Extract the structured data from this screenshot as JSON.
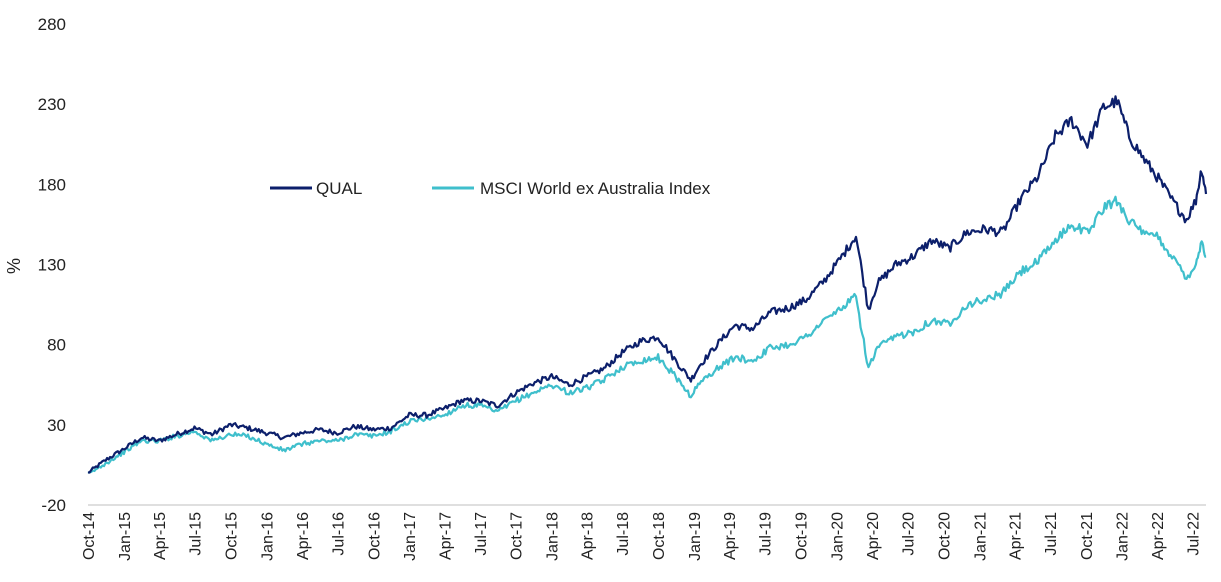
{
  "chart_data": {
    "type": "line",
    "title": "",
    "xlabel": "",
    "ylabel": "%",
    "ylim": [
      -20,
      280
    ],
    "yticks": [
      -20,
      30,
      80,
      130,
      180,
      230,
      280
    ],
    "xlim": [
      "2014-10-01",
      "2022-08-05"
    ],
    "xtick_labels": [
      "Oct-14",
      "Jan-15",
      "Apr-15",
      "Jul-15",
      "Oct-15",
      "Jan-16",
      "Apr-16",
      "Jul-16",
      "Oct-16",
      "Jan-17",
      "Apr-17",
      "Jul-17",
      "Oct-17",
      "Jan-18",
      "Apr-18",
      "Jul-18",
      "Oct-18",
      "Jan-19",
      "Apr-19",
      "Jul-19",
      "Oct-19",
      "Jan-20",
      "Apr-20",
      "Jul-20",
      "Oct-20",
      "Jan-21",
      "Apr-21",
      "Jul-21",
      "Oct-21",
      "Jan-22",
      "Apr-22",
      "Jul-22"
    ],
    "grid": false,
    "legend_position": "upper-left-center",
    "series": [
      {
        "name": "QUAL",
        "color": "#0c1f6b",
        "points": [
          [
            "2014-10-01",
            0
          ],
          [
            "2014-11-15",
            8
          ],
          [
            "2015-01-01",
            15
          ],
          [
            "2015-02-15",
            22
          ],
          [
            "2015-04-01",
            20
          ],
          [
            "2015-05-15",
            24
          ],
          [
            "2015-07-01",
            28
          ],
          [
            "2015-08-15",
            24
          ],
          [
            "2015-10-01",
            30
          ],
          [
            "2015-11-15",
            28
          ],
          [
            "2016-01-01",
            25
          ],
          [
            "2016-02-15",
            22
          ],
          [
            "2016-04-01",
            25
          ],
          [
            "2016-05-15",
            27
          ],
          [
            "2016-07-01",
            25
          ],
          [
            "2016-08-15",
            29
          ],
          [
            "2016-10-01",
            27
          ],
          [
            "2016-11-15",
            28
          ],
          [
            "2017-01-01",
            36
          ],
          [
            "2017-02-15",
            36
          ],
          [
            "2017-04-01",
            40
          ],
          [
            "2017-05-15",
            45
          ],
          [
            "2017-07-01",
            45
          ],
          [
            "2017-08-15",
            42
          ],
          [
            "2017-10-01",
            50
          ],
          [
            "2017-11-15",
            56
          ],
          [
            "2018-01-01",
            60
          ],
          [
            "2018-02-15",
            55
          ],
          [
            "2018-04-01",
            60
          ],
          [
            "2018-05-15",
            65
          ],
          [
            "2018-07-01",
            75
          ],
          [
            "2018-08-15",
            82
          ],
          [
            "2018-10-01",
            85
          ],
          [
            "2018-11-15",
            70
          ],
          [
            "2018-12-24",
            58
          ],
          [
            "2019-01-15",
            67
          ],
          [
            "2019-03-01",
            80
          ],
          [
            "2019-04-15",
            92
          ],
          [
            "2019-06-01",
            90
          ],
          [
            "2019-07-15",
            100
          ],
          [
            "2019-09-01",
            103
          ],
          [
            "2019-10-15",
            108
          ],
          [
            "2019-12-01",
            120
          ],
          [
            "2020-01-15",
            135
          ],
          [
            "2020-02-20",
            148
          ],
          [
            "2020-03-23",
            102
          ],
          [
            "2020-04-15",
            118
          ],
          [
            "2020-06-01",
            130
          ],
          [
            "2020-07-15",
            135
          ],
          [
            "2020-09-01",
            145
          ],
          [
            "2020-10-15",
            140
          ],
          [
            "2020-12-01",
            150
          ],
          [
            "2021-01-15",
            152
          ],
          [
            "2021-03-01",
            150
          ],
          [
            "2021-04-15",
            170
          ],
          [
            "2021-06-01",
            185
          ],
          [
            "2021-07-15",
            210
          ],
          [
            "2021-08-25",
            220
          ],
          [
            "2021-10-05",
            205
          ],
          [
            "2021-11-15",
            228
          ],
          [
            "2021-12-20",
            232
          ],
          [
            "2022-01-20",
            210
          ],
          [
            "2022-03-01",
            195
          ],
          [
            "2022-04-01",
            185
          ],
          [
            "2022-05-10",
            170
          ],
          [
            "2022-06-16",
            158
          ],
          [
            "2022-07-10",
            170
          ],
          [
            "2022-07-25",
            190
          ],
          [
            "2022-08-05",
            174
          ]
        ]
      },
      {
        "name": "MSCI World ex Australia Index",
        "color": "#3fbfcc",
        "points": [
          [
            "2014-10-01",
            -1
          ],
          [
            "2014-11-15",
            6
          ],
          [
            "2015-01-01",
            13
          ],
          [
            "2015-02-15",
            20
          ],
          [
            "2015-04-01",
            20
          ],
          [
            "2015-05-15",
            23
          ],
          [
            "2015-07-01",
            26
          ],
          [
            "2015-08-15",
            20
          ],
          [
            "2015-10-01",
            24
          ],
          [
            "2015-11-15",
            23
          ],
          [
            "2016-01-01",
            18
          ],
          [
            "2016-02-15",
            14
          ],
          [
            "2016-04-01",
            18
          ],
          [
            "2016-05-15",
            20
          ],
          [
            "2016-07-01",
            20
          ],
          [
            "2016-08-15",
            24
          ],
          [
            "2016-10-01",
            23
          ],
          [
            "2016-11-15",
            26
          ],
          [
            "2017-01-01",
            32
          ],
          [
            "2017-02-15",
            34
          ],
          [
            "2017-04-01",
            36
          ],
          [
            "2017-05-15",
            42
          ],
          [
            "2017-07-01",
            42
          ],
          [
            "2017-08-15",
            38
          ],
          [
            "2017-10-01",
            45
          ],
          [
            "2017-11-15",
            50
          ],
          [
            "2018-01-01",
            55
          ],
          [
            "2018-02-15",
            50
          ],
          [
            "2018-04-01",
            53
          ],
          [
            "2018-05-15",
            58
          ],
          [
            "2018-07-01",
            66
          ],
          [
            "2018-08-15",
            70
          ],
          [
            "2018-10-01",
            72
          ],
          [
            "2018-11-15",
            60
          ],
          [
            "2018-12-24",
            48
          ],
          [
            "2019-01-15",
            56
          ],
          [
            "2019-03-01",
            65
          ],
          [
            "2019-04-15",
            72
          ],
          [
            "2019-06-01",
            70
          ],
          [
            "2019-07-15",
            78
          ],
          [
            "2019-09-01",
            80
          ],
          [
            "2019-10-15",
            85
          ],
          [
            "2019-12-01",
            95
          ],
          [
            "2020-01-15",
            103
          ],
          [
            "2020-02-20",
            110
          ],
          [
            "2020-03-23",
            65
          ],
          [
            "2020-04-15",
            78
          ],
          [
            "2020-06-01",
            85
          ],
          [
            "2020-07-15",
            88
          ],
          [
            "2020-09-01",
            95
          ],
          [
            "2020-10-15",
            93
          ],
          [
            "2020-12-01",
            105
          ],
          [
            "2021-01-15",
            108
          ],
          [
            "2021-03-01",
            112
          ],
          [
            "2021-04-15",
            125
          ],
          [
            "2021-06-01",
            132
          ],
          [
            "2021-07-15",
            145
          ],
          [
            "2021-08-25",
            155
          ],
          [
            "2021-10-05",
            150
          ],
          [
            "2021-11-15",
            165
          ],
          [
            "2021-12-20",
            170
          ],
          [
            "2022-01-20",
            158
          ],
          [
            "2022-03-01",
            148
          ],
          [
            "2022-04-01",
            148
          ],
          [
            "2022-05-10",
            135
          ],
          [
            "2022-06-16",
            122
          ],
          [
            "2022-07-10",
            130
          ],
          [
            "2022-07-25",
            145
          ],
          [
            "2022-08-05",
            135
          ]
        ]
      }
    ]
  }
}
